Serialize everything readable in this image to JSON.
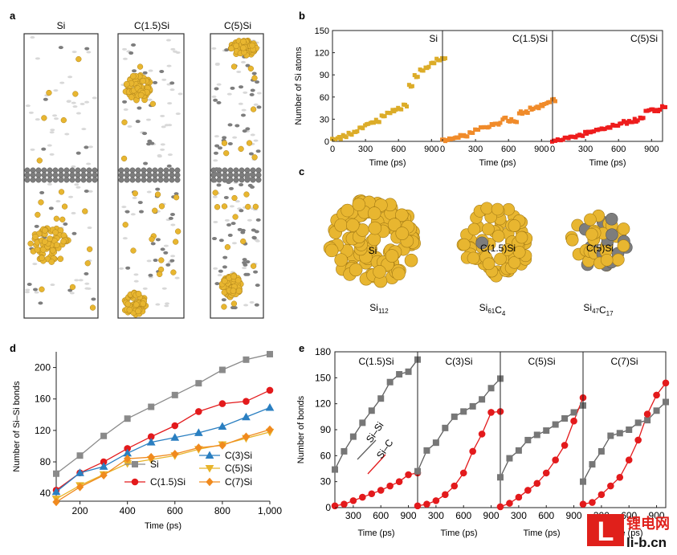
{
  "panels": {
    "a": {
      "letter": "a",
      "titles": [
        "Si",
        "C(1.5)Si",
        "C(5)Si"
      ]
    },
    "b": {
      "letter": "b"
    },
    "c": {
      "letter": "c",
      "clusters": [
        {
          "label": "Si",
          "formula": "Si",
          "formula_parts": [
            {
              "t": "Si"
            },
            {
              "s": "112"
            }
          ]
        },
        {
          "label": "C(1.5)Si",
          "formula": "Si61C4",
          "formula_parts": [
            {
              "t": "Si"
            },
            {
              "s": "61"
            },
            {
              "t": "C"
            },
            {
              "s": "4"
            }
          ]
        },
        {
          "label": "C(5)Si",
          "formula": "Si47C17",
          "formula_parts": [
            {
              "t": "Si"
            },
            {
              "s": "47"
            },
            {
              "t": "C"
            },
            {
              "s": "17"
            }
          ]
        }
      ]
    },
    "d": {
      "letter": "d"
    },
    "e": {
      "letter": "e"
    }
  },
  "watermark": {
    "brand_cn": "锂电网",
    "brand_url": "li-b.cn",
    "color": "#e0201b"
  },
  "colors": {
    "si": "#e8b630",
    "c": "#7d7d7d",
    "gray": "#8a8a8a",
    "red": "#e31a1c",
    "blue": "#2a7fc1",
    "yellow": "#e8b42a",
    "orange": "#f08a1e",
    "red_b": "#ee1c1c",
    "orange_b": "#f08b2a",
    "gold_b": "#dcac28"
  },
  "chart_data": [
    {
      "id": "b",
      "type": "scatter",
      "ylabel": "Number of Si atoms",
      "xlabel": "Time (ps)",
      "xlim": [
        0,
        1000
      ],
      "ylim": [
        0,
        150
      ],
      "xticks": [
        0,
        300,
        600,
        900
      ],
      "yticks": [
        0,
        30,
        60,
        90,
        120,
        150
      ],
      "subplots": [
        {
          "name": "Si",
          "color": "#dcac28",
          "x": [
            0,
            50,
            100,
            150,
            200,
            250,
            300,
            350,
            400,
            450,
            500,
            550,
            600,
            650,
            700,
            750,
            800,
            850,
            900,
            950,
            1000
          ],
          "y": [
            2,
            4,
            7,
            10,
            14,
            18,
            22,
            25,
            27,
            33,
            38,
            42,
            44,
            48,
            74,
            88,
            97,
            100,
            105,
            110,
            112
          ]
        },
        {
          "name": "C(1.5)Si",
          "color": "#f08b2a",
          "x": [
            0,
            50,
            100,
            150,
            200,
            250,
            300,
            350,
            400,
            450,
            500,
            550,
            600,
            650,
            700,
            750,
            800,
            850,
            900,
            950,
            1000
          ],
          "y": [
            0,
            2,
            4,
            6,
            8,
            12,
            15,
            18,
            20,
            22,
            24,
            30,
            28,
            26,
            38,
            40,
            44,
            46,
            48,
            52,
            55
          ]
        },
        {
          "name": "C(5)Si",
          "color": "#ee1c1c",
          "x": [
            0,
            50,
            100,
            150,
            200,
            250,
            300,
            350,
            400,
            450,
            500,
            550,
            600,
            650,
            700,
            750,
            800,
            850,
            900,
            950,
            1000
          ],
          "y": [
            0,
            2,
            3,
            5,
            6,
            8,
            11,
            12,
            14,
            16,
            18,
            20,
            22,
            25,
            27,
            28,
            30,
            40,
            41,
            42,
            46
          ]
        }
      ]
    },
    {
      "id": "d",
      "type": "line",
      "xlabel": "Time (ps)",
      "ylabel": "Number of Si–Si bonds",
      "xlim": [
        100,
        1000
      ],
      "ylim": [
        30,
        220
      ],
      "xticks": [
        200,
        400,
        600,
        800,
        1000
      ],
      "xtick_labels": [
        "200",
        "400",
        "600",
        "800",
        "1,000"
      ],
      "yticks": [
        40,
        80,
        120,
        160,
        200
      ],
      "x": [
        100,
        200,
        300,
        400,
        500,
        600,
        700,
        800,
        900,
        1000
      ],
      "series": [
        {
          "name": "Si",
          "color": "#8a8a8a",
          "marker": "square",
          "values": [
            65,
            88,
            113,
            135,
            150,
            165,
            180,
            197,
            210,
            217
          ]
        },
        {
          "name": "C(1.5)Si",
          "color": "#e31a1c",
          "marker": "circle",
          "values": [
            44,
            66,
            80,
            97,
            112,
            126,
            144,
            154,
            157,
            171
          ]
        },
        {
          "name": "C(3)Si",
          "color": "#2a7fc1",
          "marker": "triangle-up",
          "values": [
            42,
            66,
            74,
            91,
            105,
            111,
            117,
            125,
            137,
            149
          ]
        },
        {
          "name": "C(5)Si",
          "color": "#e8b42a",
          "marker": "triangle-down",
          "values": [
            33,
            50,
            64,
            78,
            83,
            88,
            96,
            102,
            110,
            118
          ]
        },
        {
          "name": "C(7)Si",
          "color": "#f08a1e",
          "marker": "diamond",
          "values": [
            29,
            48,
            63,
            84,
            86,
            90,
            98,
            101,
            112,
            121
          ]
        }
      ]
    },
    {
      "id": "e",
      "type": "line",
      "xlabel": "Time (ps)",
      "ylabel": "Number of bonds",
      "xlim": [
        100,
        1000
      ],
      "ylim": [
        0,
        180
      ],
      "xticks": [
        300,
        600,
        900
      ],
      "yticks": [
        0,
        30,
        60,
        90,
        120,
        150,
        180
      ],
      "annotations": [
        "Si–Si",
        "Si–C"
      ],
      "x": [
        100,
        200,
        300,
        400,
        500,
        600,
        700,
        800,
        900,
        1000
      ],
      "subplots": [
        {
          "name": "C(1.5)Si",
          "si_si": [
            44,
            65,
            82,
            98,
            112,
            126,
            145,
            154,
            157,
            171
          ],
          "si_c": [
            2,
            4,
            8,
            12,
            16,
            20,
            25,
            30,
            38,
            40
          ]
        },
        {
          "name": "C(3)Si",
          "si_si": [
            42,
            66,
            75,
            92,
            105,
            111,
            117,
            125,
            138,
            149
          ],
          "si_c": [
            2,
            4,
            8,
            15,
            25,
            40,
            65,
            85,
            110,
            111
          ]
        },
        {
          "name": "C(5)Si",
          "si_si": [
            35,
            57,
            66,
            78,
            84,
            89,
            96,
            103,
            110,
            118
          ],
          "si_c": [
            1,
            5,
            12,
            20,
            28,
            40,
            55,
            72,
            100,
            127
          ]
        },
        {
          "name": "C(7)Si",
          "si_si": [
            30,
            50,
            65,
            83,
            86,
            90,
            98,
            101,
            112,
            122
          ],
          "si_c": [
            4,
            6,
            15,
            25,
            35,
            55,
            78,
            108,
            130,
            144
          ]
        }
      ]
    }
  ]
}
